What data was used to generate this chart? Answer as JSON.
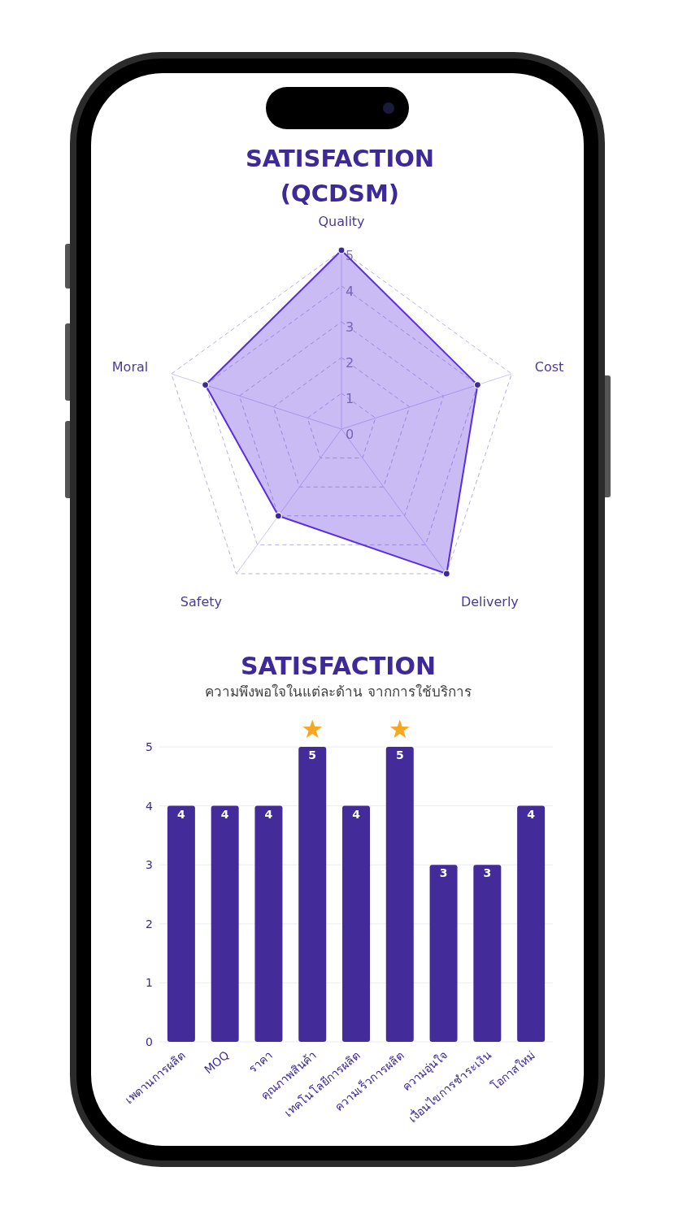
{
  "chart_data": [
    {
      "type": "radar",
      "title": "SATISFACTION (QCDSM)",
      "categories": [
        "Quality",
        "Cost",
        "Deliverly",
        "Safety",
        "Moral"
      ],
      "series": [
        {
          "color": "#5a2de0",
          "values": [
            5,
            4,
            5,
            3,
            4
          ]
        }
      ],
      "ylim": [
        0,
        5
      ],
      "yticks": [
        0,
        1,
        2,
        3,
        4,
        5
      ],
      "grid": true,
      "marker": "circle",
      "line_style": "solid"
    },
    {
      "type": "bar",
      "title": "SATISFACTION",
      "subtitle": "ความพึงพอใจในแต่ละด้าน จากการใช้บริการ",
      "categories": [
        "เพดานการผลิต",
        "MOQ",
        "ราคา",
        "คุณภาพสินค้า",
        "เทคโนโลยีการผลิต",
        "ความเร็วการผลิต",
        "ความอุ่นใจ",
        "เงื่อนไขการชำระเงิน",
        "โอกาสใหม่"
      ],
      "values": [
        4,
        4,
        4,
        5,
        4,
        5,
        3,
        3,
        4
      ],
      "color": "#432c9a",
      "ylim": [
        0,
        5
      ],
      "yticks": [
        0,
        1,
        2,
        3,
        4,
        5
      ],
      "grid": "y",
      "data_labels": true
    }
  ]
}
